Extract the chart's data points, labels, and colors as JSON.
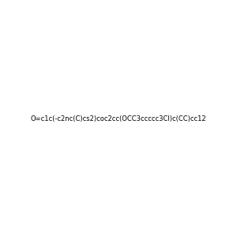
{
  "smiles": "O=c1c(-c2nc(C)cs2)coc2cc(OCC3ccccc3Cl)c(CC)cc12",
  "image_size": 300,
  "background_color": "#f0f0f0"
}
